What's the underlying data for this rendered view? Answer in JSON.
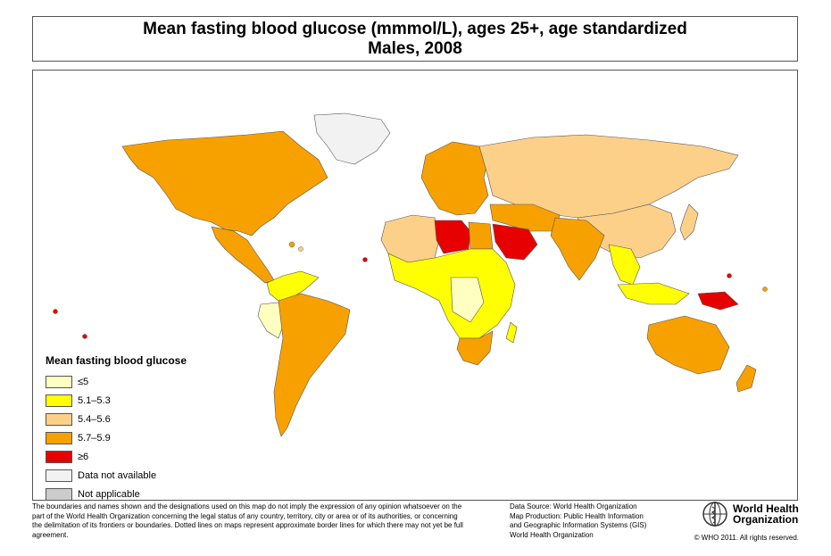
{
  "title": {
    "line1": "Mean fasting blood glucose (mmmol/L), ages 25+, age standardized",
    "line2": "Males, 2008"
  },
  "legend": {
    "title": "Mean fasting blood glucose",
    "items": [
      {
        "label": "≤5",
        "color": "#ffffc0"
      },
      {
        "label": "5.1–5.3",
        "color": "#ffff00"
      },
      {
        "label": "5.4–5.6",
        "color": "#fdd08a"
      },
      {
        "label": "5.7–5.9",
        "color": "#f7a100"
      },
      {
        "label": "≥6",
        "color": "#e60000"
      },
      {
        "label": "Data not available",
        "color": "#f2f2f2"
      },
      {
        "label": "Not applicable",
        "color": "#cccccc"
      }
    ]
  },
  "footer": {
    "disclaimer": "The boundaries and names shown and the designations used on this map do not imply the expression of any opinion whatsoever on the part of the World Health Organization concerning the legal status of any country, territory, city or area or of its authorities, or concerning the delimitation of its frontiers or boundaries. Dotted lines on maps represent approximate border lines for which there may not yet be full agreement.",
    "source_lines": [
      "Data Source: World Health Organization",
      "Map Production: Public Health Information",
      "and Geographic Information Systems (GIS)",
      "World Health Organization"
    ],
    "org_name_line1": "World Health",
    "org_name_line2": "Organization",
    "copyright": "© WHO 2011. All rights reserved."
  },
  "map": {
    "regions": [
      {
        "name": "north-america",
        "category": "5.7–5.9"
      },
      {
        "name": "greenland",
        "category": "Data not available"
      },
      {
        "name": "mexico-central-america",
        "category": "5.7–5.9"
      },
      {
        "name": "south-america",
        "category": "5.7–5.9"
      },
      {
        "name": "colombia-venezuela",
        "category": "5.1–5.3"
      },
      {
        "name": "peru",
        "category": "≤5"
      },
      {
        "name": "europe",
        "category": "5.7–5.9"
      },
      {
        "name": "russia-central-asia",
        "category": "5.4–5.6"
      },
      {
        "name": "north-africa-west",
        "category": "5.4–5.6"
      },
      {
        "name": "libya",
        "category": "≥6"
      },
      {
        "name": "egypt",
        "category": "5.7–5.9"
      },
      {
        "name": "saudi-arabia",
        "category": "≥6"
      },
      {
        "name": "middle-east",
        "category": "5.7–5.9"
      },
      {
        "name": "south-asia",
        "category": "5.7–5.9"
      },
      {
        "name": "china",
        "category": "5.4–5.6"
      },
      {
        "name": "southeast-asia",
        "category": "5.1–5.3"
      },
      {
        "name": "sub-saharan-africa",
        "category": "5.1–5.3"
      },
      {
        "name": "central-africa",
        "category": "≤5"
      },
      {
        "name": "southern-africa",
        "category": "5.7–5.9"
      },
      {
        "name": "indonesia",
        "category": "5.1–5.3"
      },
      {
        "name": "papua-new-guinea",
        "category": "≥6"
      },
      {
        "name": "australia",
        "category": "5.7–5.9"
      },
      {
        "name": "new-zealand",
        "category": "5.7–5.9"
      },
      {
        "name": "japan",
        "category": "5.4–5.6"
      }
    ]
  }
}
